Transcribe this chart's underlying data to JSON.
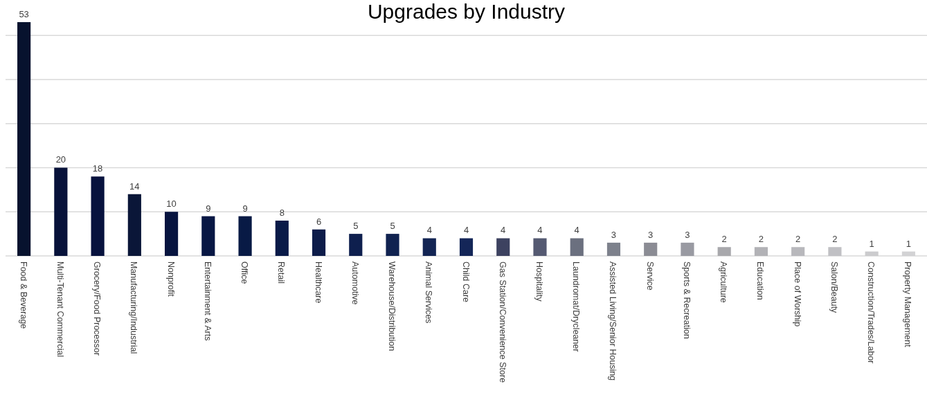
{
  "chart_data": {
    "type": "bar",
    "title": "Upgrades by Industry",
    "categories": [
      "Food & Beverage",
      "Multi-Tenant Commercial",
      "Grocery/Food Processor",
      "Manufacturing/Industrial",
      "Nonprofit",
      "Entertainment & Arts",
      "Office",
      "Retail",
      "Healthcare",
      "Automotive",
      "Warehouse/Distribution",
      "Animal Services",
      "Child Care",
      "Gas Station/Convenience Store",
      "Hospitality",
      "Laundromat/Drycleaner",
      "Assisted Living/Senior Housing",
      "Service",
      "Sports & Recreation",
      "Agriculture",
      "Education",
      "Place of Worship",
      "Salon/Beauty",
      "Construction/Trades/Labor",
      "Property Management"
    ],
    "values": [
      53,
      20,
      18,
      14,
      10,
      9,
      9,
      8,
      6,
      5,
      5,
      4,
      4,
      4,
      4,
      4,
      3,
      3,
      3,
      2,
      2,
      2,
      2,
      1,
      1
    ],
    "colors": [
      "#07122e",
      "#07123a",
      "#07123e",
      "#0a1638",
      "#07143f",
      "#081744",
      "#081a45",
      "#091a48",
      "#0d1c4a",
      "#0e1f4e",
      "#102250",
      "#132554",
      "#142658",
      "#3d4260",
      "#555a72",
      "#6b707f",
      "#7d818c",
      "#8b8c94",
      "#999aa2",
      "#a8a8ac",
      "#b2b2b6",
      "#b8b8bc",
      "#c0c0c4",
      "#cbcbcd",
      "#d2d2d4"
    ],
    "yticks": [
      {
        "value": 0,
        "label": null
      },
      {
        "value": 10,
        "label": null
      },
      {
        "value": 20,
        "label": null
      },
      {
        "value": 30,
        "label": null
      },
      {
        "value": 40,
        "label": null
      },
      {
        "value": 50,
        "label": null
      }
    ],
    "grid": "y",
    "tick_labels": "x",
    "data_labels": true
  }
}
